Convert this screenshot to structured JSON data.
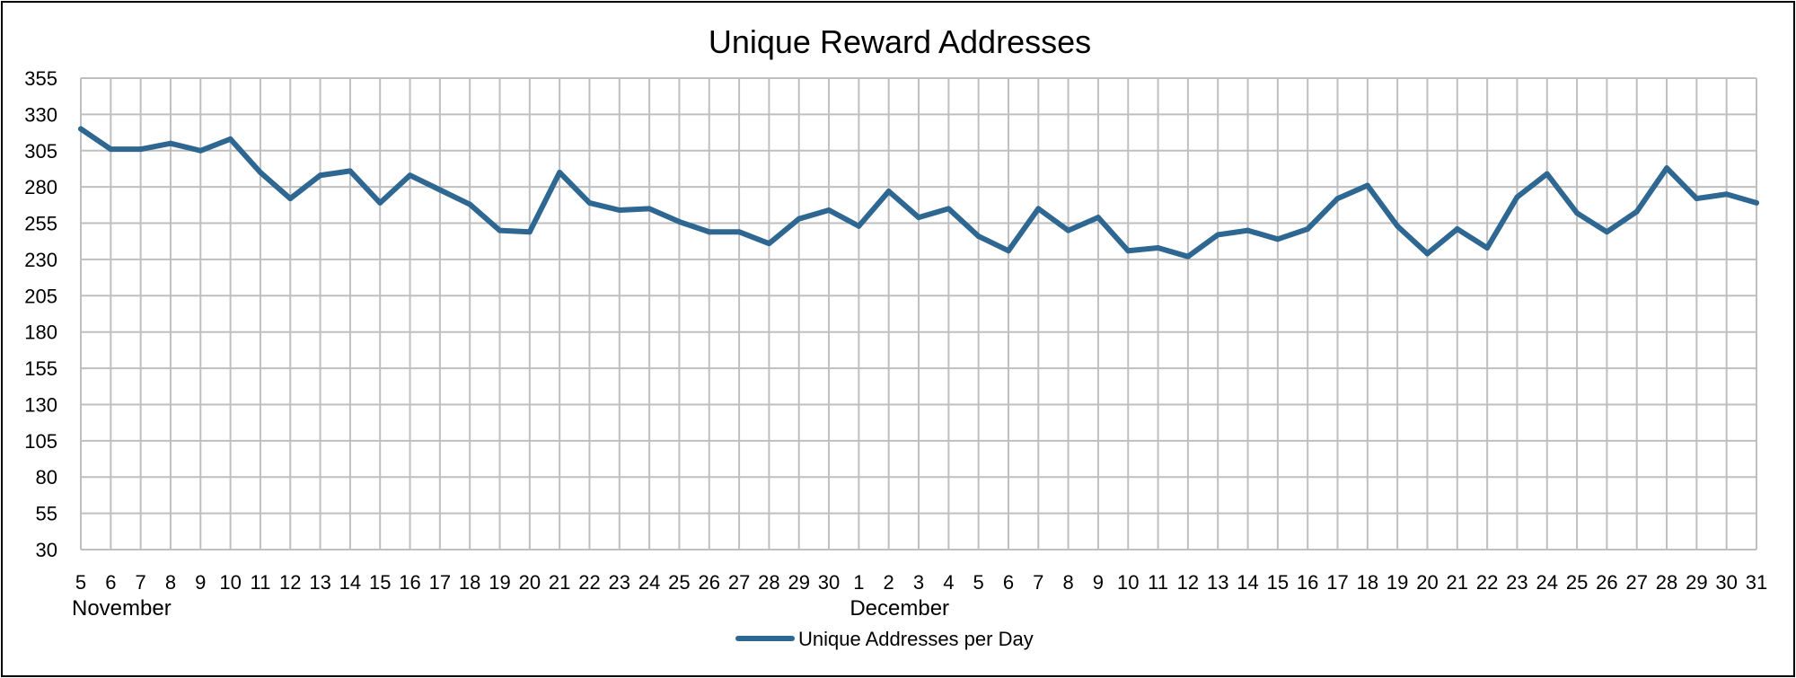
{
  "chart_data": {
    "type": "line",
    "title": "Unique Reward Addresses",
    "xlabel": "",
    "ylabel": "",
    "ylim": [
      30,
      355
    ],
    "yticks": [
      30,
      55,
      80,
      105,
      130,
      155,
      180,
      205,
      230,
      255,
      280,
      305,
      330,
      355
    ],
    "grid": true,
    "legend_position": "bottom",
    "categories": [
      "5",
      "6",
      "7",
      "8",
      "9",
      "10",
      "11",
      "12",
      "13",
      "14",
      "15",
      "16",
      "17",
      "18",
      "19",
      "20",
      "21",
      "22",
      "23",
      "24",
      "25",
      "26",
      "27",
      "28",
      "29",
      "30",
      "1",
      "2",
      "3",
      "4",
      "5",
      "6",
      "7",
      "8",
      "9",
      "10",
      "11",
      "12",
      "13",
      "14",
      "15",
      "16",
      "17",
      "18",
      "19",
      "20",
      "21",
      "22",
      "23",
      "24",
      "25",
      "26",
      "27",
      "28",
      "29",
      "30",
      "31"
    ],
    "month_labels": [
      {
        "label": "November",
        "start_index": 0
      },
      {
        "label": "December",
        "start_index": 26
      }
    ],
    "series": [
      {
        "name": "Unique Addresses per Day",
        "color": "#2E6791",
        "values": [
          320,
          306,
          306,
          310,
          305,
          313,
          290,
          272,
          288,
          291,
          269,
          288,
          278,
          268,
          250,
          249,
          290,
          269,
          264,
          265,
          256,
          249,
          249,
          241,
          258,
          264,
          253,
          277,
          259,
          265,
          246,
          236,
          265,
          250,
          259,
          236,
          238,
          232,
          247,
          250,
          244,
          251,
          272,
          281,
          253,
          234,
          251,
          238,
          273,
          289,
          262,
          249,
          263,
          293,
          272,
          275,
          269
        ]
      }
    ]
  }
}
